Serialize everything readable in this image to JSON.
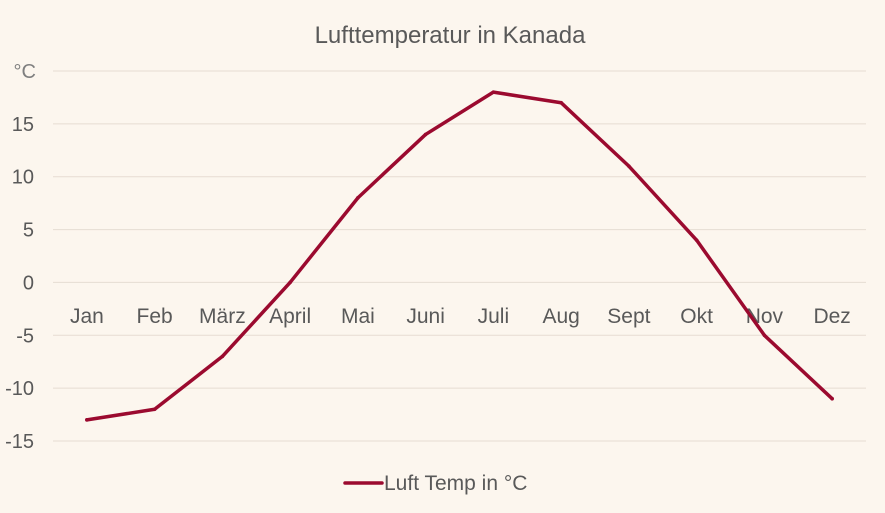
{
  "chart_data": {
    "type": "line",
    "title": "Lufttemperatur in Kanada",
    "unit_label": "°C",
    "categories": [
      "Jan",
      "Feb",
      "März",
      "April",
      "Mai",
      "Juni",
      "Juli",
      "Aug",
      "Sept",
      "Okt",
      "Nov",
      "Dez"
    ],
    "series": [
      {
        "name": "Luft Temp in °C",
        "values": [
          -13,
          -12,
          -7,
          0,
          8,
          14,
          18,
          17,
          11,
          4,
          -5,
          -11
        ],
        "color": "#9b0a2f"
      }
    ],
    "ylim": [
      -15,
      20
    ],
    "yticks": [
      -15,
      -10,
      -5,
      0,
      5,
      10,
      15
    ],
    "ytick_labels": [
      "-15",
      "-10",
      "-5",
      "0",
      "5",
      "10",
      "15"
    ],
    "grid": true,
    "legend_position": "bottom"
  }
}
